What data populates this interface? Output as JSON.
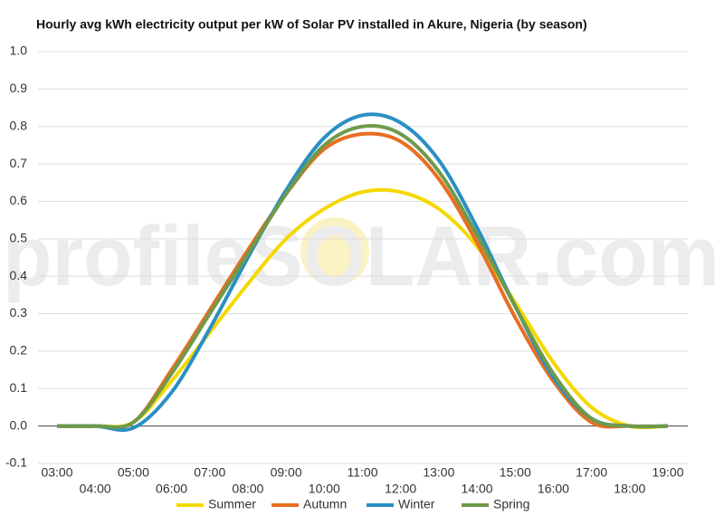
{
  "chart_data": {
    "type": "line",
    "title": "Hourly avg kWh electricity output per kW of Solar PV installed in Akure, Nigeria (by season)",
    "watermark": "profileSOLAR.com",
    "categories": [
      "03:00",
      "04:00",
      "05:00",
      "06:00",
      "07:00",
      "08:00",
      "09:00",
      "10:00",
      "11:00",
      "12:00",
      "13:00",
      "14:00",
      "15:00",
      "16:00",
      "17:00",
      "18:00",
      "19:00"
    ],
    "series": [
      {
        "name": "Summer",
        "color": "#f5d800",
        "values": [
          0,
          0,
          0.01,
          0.12,
          0.25,
          0.38,
          0.5,
          0.58,
          0.625,
          0.625,
          0.58,
          0.48,
          0.33,
          0.17,
          0.05,
          0,
          0
        ]
      },
      {
        "name": "Autumn",
        "color": "#e86e22",
        "values": [
          0,
          0,
          0.01,
          0.15,
          0.31,
          0.47,
          0.62,
          0.74,
          0.78,
          0.76,
          0.66,
          0.49,
          0.29,
          0.12,
          0.01,
          0,
          0
        ]
      },
      {
        "name": "Winter",
        "color": "#2a8fc4",
        "values": [
          0,
          0,
          -0.005,
          0.09,
          0.26,
          0.45,
          0.63,
          0.77,
          0.83,
          0.81,
          0.71,
          0.53,
          0.32,
          0.13,
          0.02,
          0,
          0
        ]
      },
      {
        "name": "Spring",
        "color": "#6e9a4a",
        "values": [
          0,
          0,
          0.01,
          0.14,
          0.3,
          0.46,
          0.62,
          0.75,
          0.8,
          0.78,
          0.68,
          0.51,
          0.32,
          0.14,
          0.02,
          0,
          0
        ]
      }
    ],
    "ylim": [
      -0.1,
      1.0
    ],
    "yticks": [
      {
        "value": -0.1,
        "label": "-0.1"
      },
      {
        "value": 0,
        "label": "0.0"
      },
      0.1,
      0.2,
      0.3,
      0.4,
      0.5,
      0.6,
      0.7,
      0.8,
      0.9,
      {
        "value": 1,
        "label": "1.0"
      }
    ],
    "grid": true,
    "legend": "bottom"
  }
}
